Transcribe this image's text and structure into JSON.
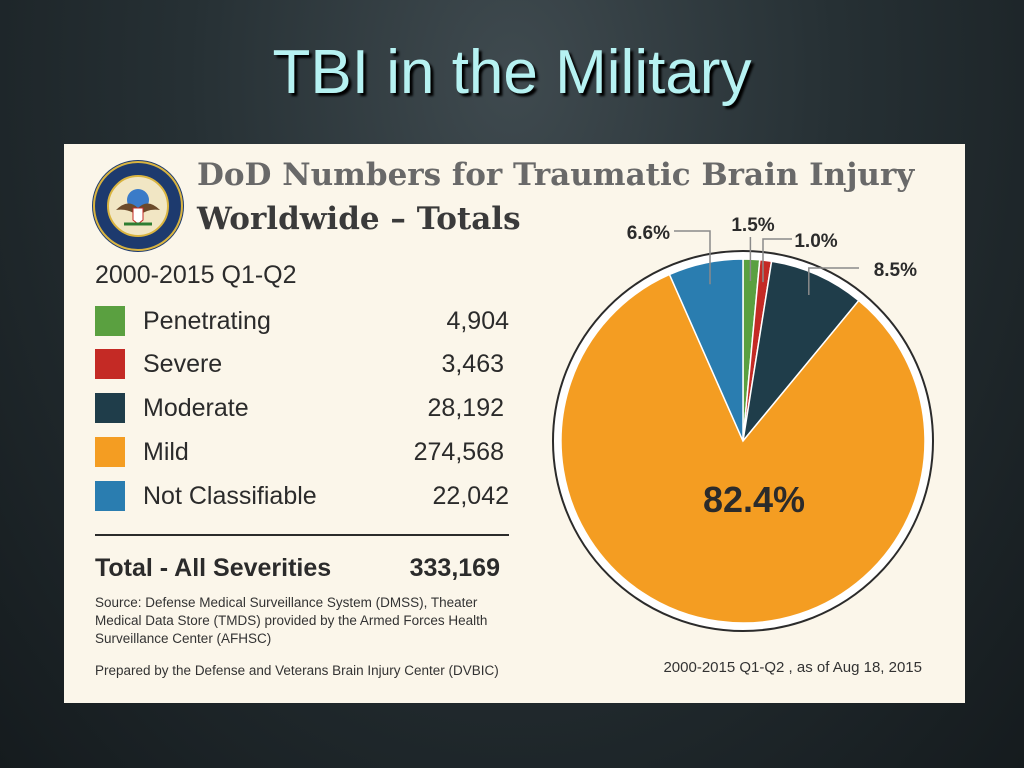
{
  "slide": {
    "title": "TBI in the Military"
  },
  "panel": {
    "heading": "DoD Numbers for Traumatic Brain Injury",
    "subheading": "Worldwide – Totals",
    "period": "2000-2015 Q1-Q2",
    "total_label": "Total - All Severities",
    "total_value": "333,169",
    "source": "Source: Defense Medical Surveillance System (DMSS), Theater Medical Data Store (TMDS) provided by the Armed Forces Health Surveillance Center (AFHSC)",
    "prepared": "Prepared by the Defense and Veterans Brain Injury Center (DVBIC)",
    "as_of": "2000-2015 Q1-Q2 , as of Aug 18, 2015",
    "seal_text": "DEPARTMENT OF DEFENSE UNITED STATES OF AMERICA"
  },
  "legend": [
    {
      "label": "Penetrating",
      "value": "4,904",
      "color": "#5aa040"
    },
    {
      "label": "Severe",
      "value": "3,463",
      "color": "#c42a25"
    },
    {
      "label": "Moderate",
      "value": "28,192",
      "color": "#1f3d4a"
    },
    {
      "label": "Mild",
      "value": "274,568",
      "color": "#f49d22"
    },
    {
      "label": "Not Classifiable",
      "value": "22,042",
      "color": "#2a7db0"
    }
  ],
  "chart_data": {
    "type": "pie",
    "categories": [
      "Penetrating",
      "Severe",
      "Moderate",
      "Mild",
      "Not Classifiable"
    ],
    "values": [
      4904,
      3463,
      28192,
      274568,
      22042
    ],
    "labels": [
      "1.5%",
      "1.0%",
      "8.5%",
      "82.4%",
      "6.6%"
    ],
    "colors": [
      "#5aa040",
      "#c42a25",
      "#1f3d4a",
      "#f49d22",
      "#2a7db0"
    ]
  }
}
